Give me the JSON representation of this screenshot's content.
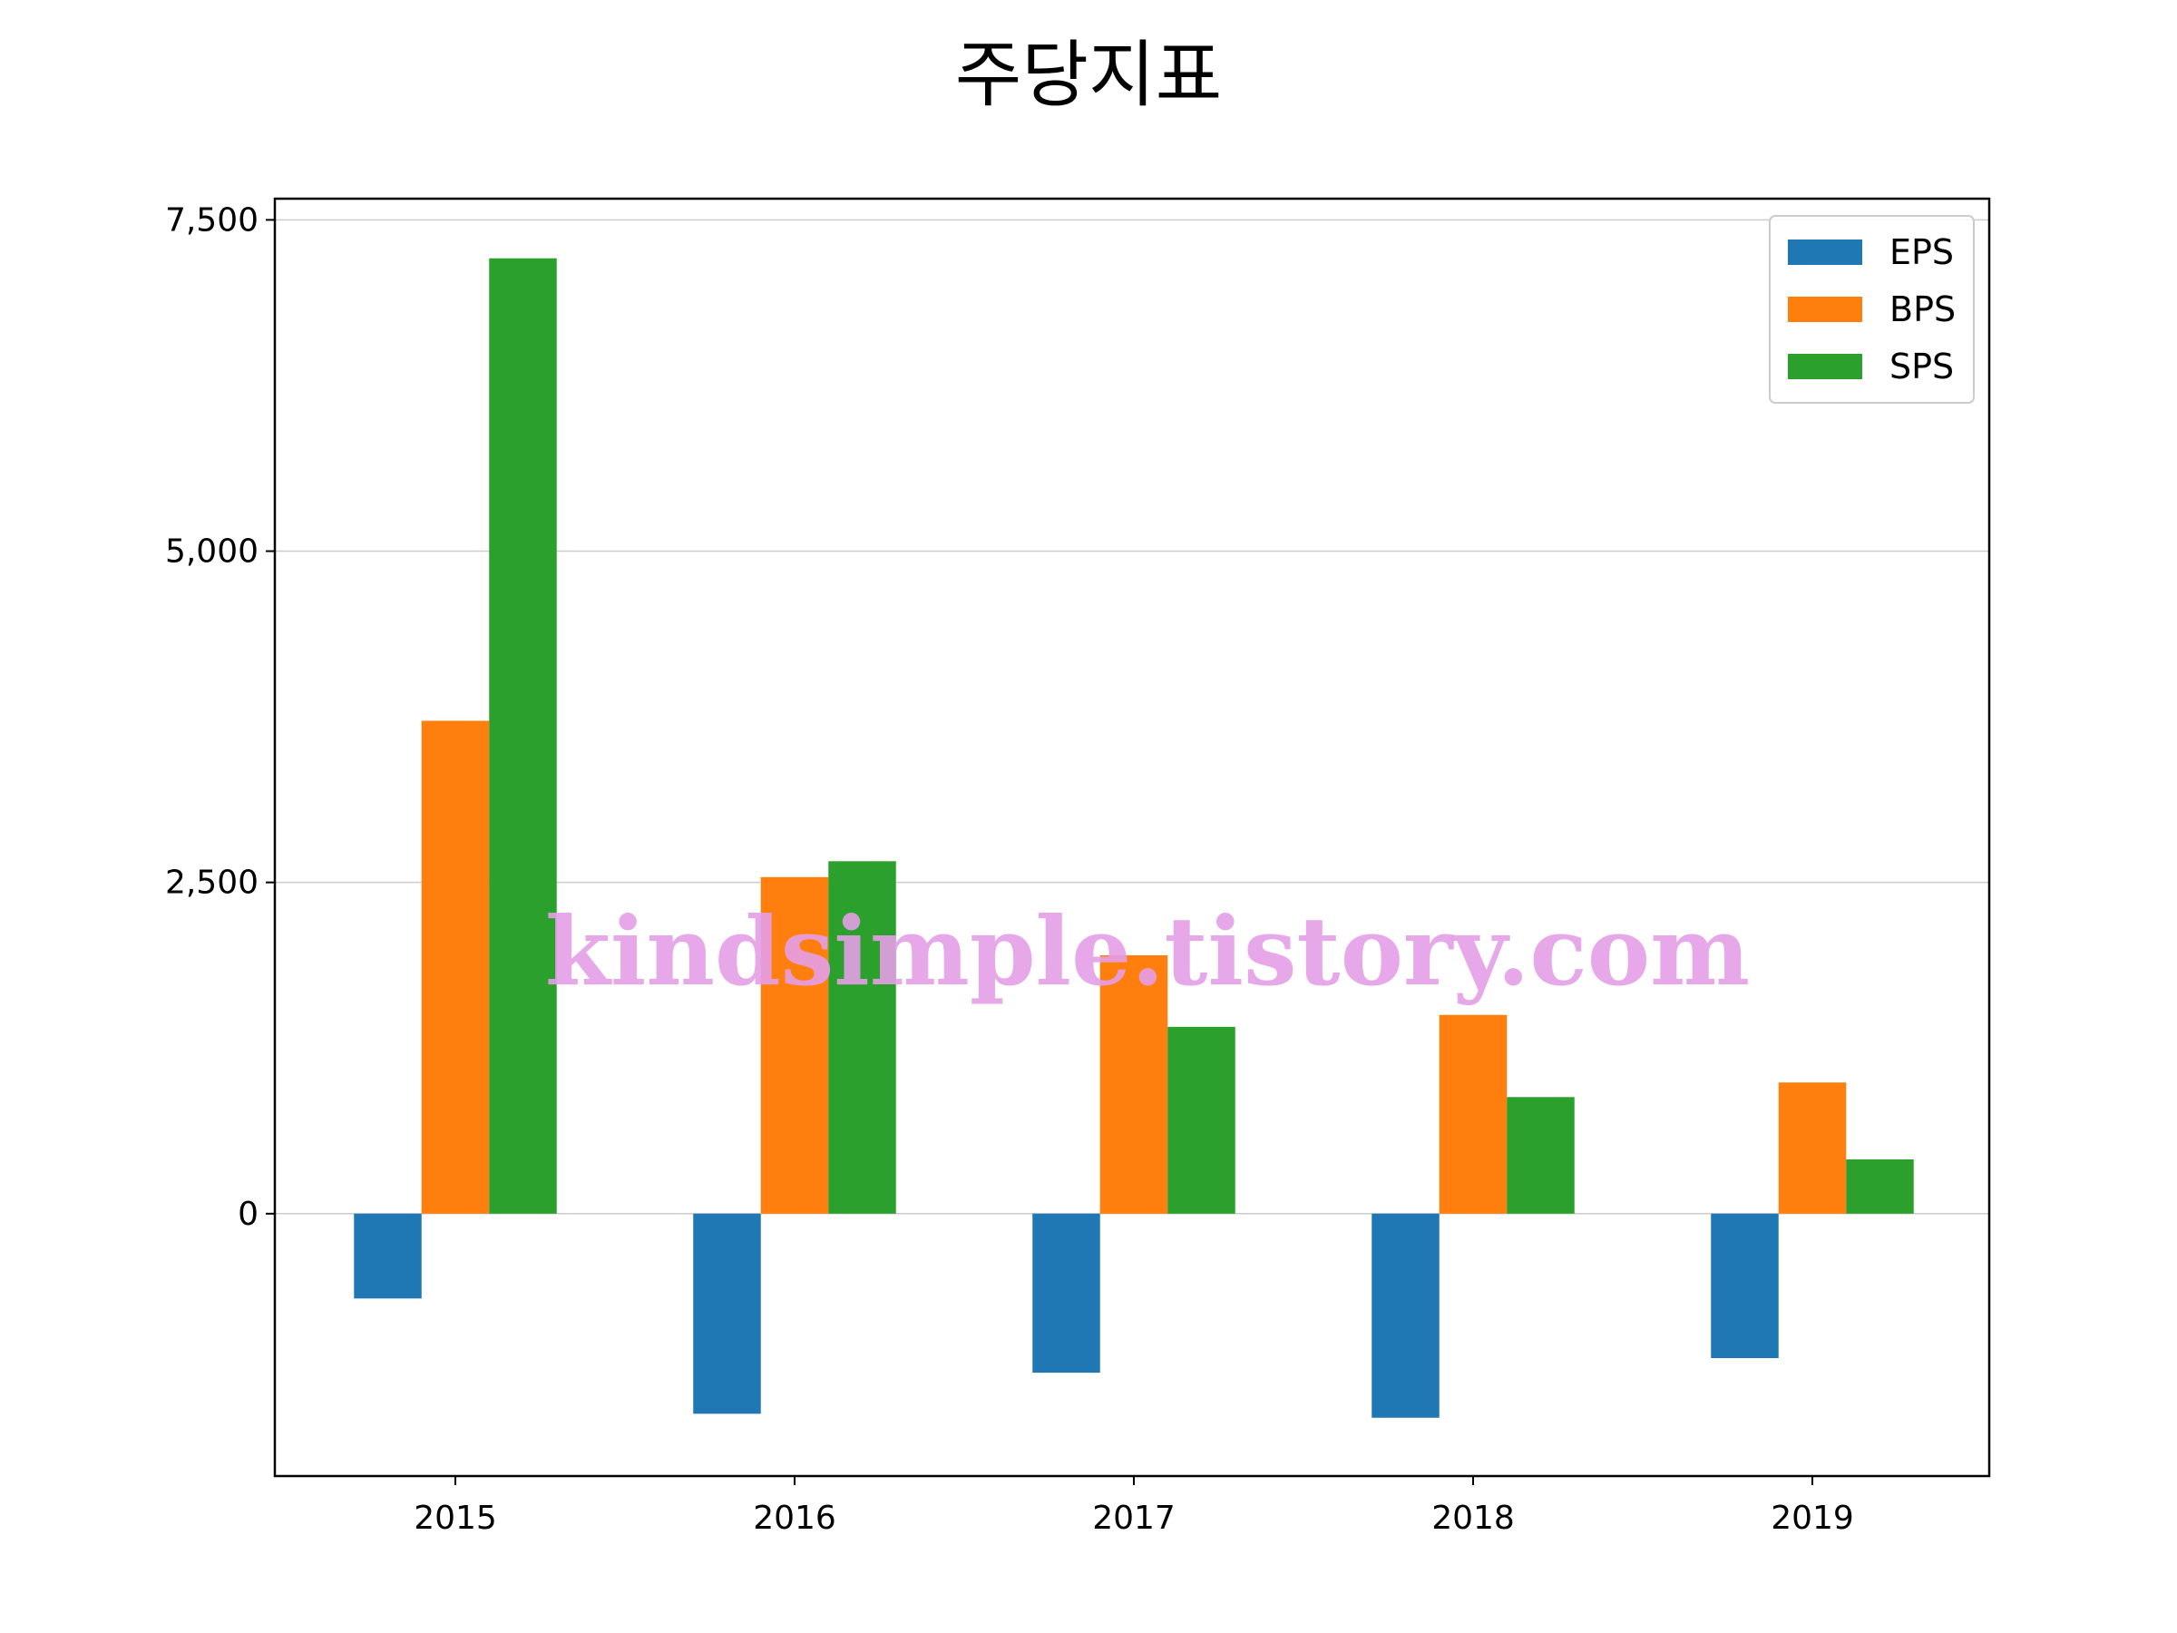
{
  "chart_data": {
    "type": "bar",
    "title": "주당지표",
    "xlabel": "",
    "ylabel": "",
    "categories": [
      "2015",
      "2016",
      "2017",
      "2018",
      "2019"
    ],
    "series": [
      {
        "name": "EPS",
        "color": "#1f77b4",
        "values": [
          -640,
          -1510,
          -1200,
          -1540,
          -1090
        ]
      },
      {
        "name": "BPS",
        "color": "#ff7f0e",
        "values": [
          3720,
          2540,
          1950,
          1500,
          990
        ]
      },
      {
        "name": "SPS",
        "color": "#2ca02c",
        "values": [
          7210,
          2660,
          1410,
          880,
          410
        ]
      }
    ],
    "ylim": [
      -1980,
      7660
    ],
    "yticks": [
      0,
      2500,
      5000,
      7500
    ],
    "ytick_labels": [
      "0",
      "2,500",
      "5,000",
      "7,500"
    ],
    "grid": "y",
    "legend_position": "top-right"
  },
  "watermark": "kindsimple.tistory.com"
}
